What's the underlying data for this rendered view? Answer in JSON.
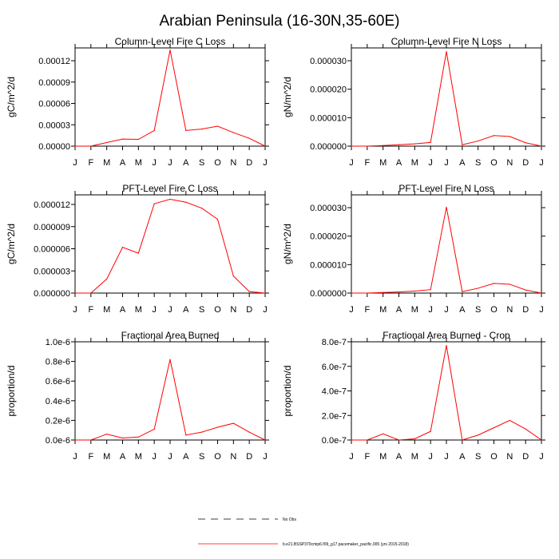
{
  "figure": {
    "title": "Arabian Peninsula (16-30N,35-60E)"
  },
  "colors": {
    "model": "#ff0000",
    "axis": "#000000",
    "obs": "#000000"
  },
  "months": [
    "J",
    "F",
    "M",
    "A",
    "M",
    "J",
    "J",
    "A",
    "S",
    "O",
    "N",
    "D",
    "J"
  ],
  "chart_data": [
    {
      "type": "line",
      "title": "Column-Level Fire C Loss",
      "ylabel": "gC/m^2/d",
      "ylim": [
        0,
        0.000138
      ],
      "yticks": [
        0,
        3e-05,
        6e-05,
        9e-05,
        0.00012
      ],
      "ytick_labels": [
        "0.00000",
        "0.00003",
        "0.00006",
        "0.00009",
        "0.00012"
      ],
      "categories": [
        "J",
        "F",
        "M",
        "A",
        "M",
        "J",
        "J",
        "A",
        "S",
        "O",
        "N",
        "D",
        "J"
      ],
      "values": [
        0,
        0,
        5e-06,
        1e-05,
        9.5e-06,
        2.2e-05,
        0.000135,
        2.2e-05,
        2.4e-05,
        2.8e-05,
        1.9e-05,
        1.1e-05,
        0
      ]
    },
    {
      "type": "line",
      "title": "Column-Level Fire N Loss",
      "ylabel": "gN/m^2/d",
      "ylim": [
        0,
        3.45e-05
      ],
      "yticks": [
        0,
        1e-05,
        2e-05,
        3e-05
      ],
      "ytick_labels": [
        "0.000000",
        "0.000010",
        "0.000020",
        "0.000030"
      ],
      "categories": [
        "J",
        "F",
        "M",
        "A",
        "M",
        "J",
        "J",
        "A",
        "S",
        "O",
        "N",
        "D",
        "J"
      ],
      "values": [
        0,
        0,
        2e-07,
        5e-07,
        8e-07,
        1.3e-06,
        3.32e-05,
        5e-07,
        1.8e-06,
        3.7e-06,
        3.4e-06,
        1.2e-06,
        0
      ]
    },
    {
      "type": "line",
      "title": "PFT-Level Fire C Loss",
      "ylabel": "gC/m^2/d",
      "ylim": [
        0,
        1.33e-05
      ],
      "yticks": [
        0,
        3e-06,
        6e-06,
        9e-06,
        1.2e-05
      ],
      "ytick_labels": [
        "0.000000",
        "0.000003",
        "0.000006",
        "0.000009",
        "0.000012"
      ],
      "categories": [
        "J",
        "F",
        "M",
        "A",
        "M",
        "J",
        "J",
        "A",
        "S",
        "O",
        "N",
        "D",
        "J"
      ],
      "values": [
        0,
        0,
        1.9e-06,
        6.2e-06,
        5.4e-06,
        1.21e-05,
        1.27e-05,
        1.23e-05,
        1.15e-05,
        1e-05,
        2.3e-06,
        2e-07,
        0
      ]
    },
    {
      "type": "line",
      "title": "PFT-Level Fire N Loss",
      "ylabel": "gN/m^2/d",
      "ylim": [
        0,
        3.45e-05
      ],
      "yticks": [
        0,
        1e-05,
        2e-05,
        3e-05
      ],
      "ytick_labels": [
        "0.000000",
        "0.000010",
        "0.000020",
        "0.000030"
      ],
      "categories": [
        "J",
        "F",
        "M",
        "A",
        "M",
        "J",
        "J",
        "A",
        "S",
        "O",
        "N",
        "D",
        "J"
      ],
      "values": [
        0,
        0,
        2e-07,
        4e-07,
        7e-07,
        1.2e-06,
        3.02e-05,
        5e-07,
        1.7e-06,
        3.4e-06,
        3.1e-06,
        1.1e-06,
        0
      ]
    },
    {
      "type": "line",
      "title": "Fractional Area Burned",
      "ylabel": "proportion/d",
      "ylim": [
        0,
        1e-06
      ],
      "yticks": [
        0,
        2e-07,
        4e-07,
        6e-07,
        8e-07,
        1e-06
      ],
      "ytick_labels": [
        "0.0e-6",
        "0.2e-6",
        "0.4e-6",
        "0.6e-6",
        "0.8e-6",
        "1.0e-6"
      ],
      "categories": [
        "J",
        "F",
        "M",
        "A",
        "M",
        "J",
        "J",
        "A",
        "S",
        "O",
        "N",
        "D",
        "J"
      ],
      "values": [
        0,
        0,
        6e-08,
        2e-08,
        3e-08,
        1.1e-07,
        8.2e-07,
        5e-08,
        8e-08,
        1.3e-07,
        1.7e-07,
        8e-08,
        0
      ]
    },
    {
      "type": "line",
      "title": "Fractional Area Burned - Crop",
      "ylabel": "proportion/d",
      "ylim": [
        0,
        8e-07
      ],
      "yticks": [
        0,
        2e-07,
        4e-07,
        6e-07,
        8e-07
      ],
      "ytick_labels": [
        "0.0e-7",
        "2.0e-7",
        "4.0e-7",
        "6.0e-7",
        "8.0e-7"
      ],
      "categories": [
        "J",
        "F",
        "M",
        "A",
        "M",
        "J",
        "J",
        "A",
        "S",
        "O",
        "N",
        "D",
        "J"
      ],
      "values": [
        0,
        0,
        5e-08,
        0,
        1e-08,
        7e-08,
        7.7e-07,
        0,
        4e-08,
        1e-07,
        1.6e-07,
        9e-08,
        0
      ]
    }
  ],
  "legend": {
    "obs_label": "No Obs",
    "model_label": "b.e21.BSSP370cmip6.f09_g17.pacemaker_pacific.005 (yrs 2015-2018)"
  }
}
